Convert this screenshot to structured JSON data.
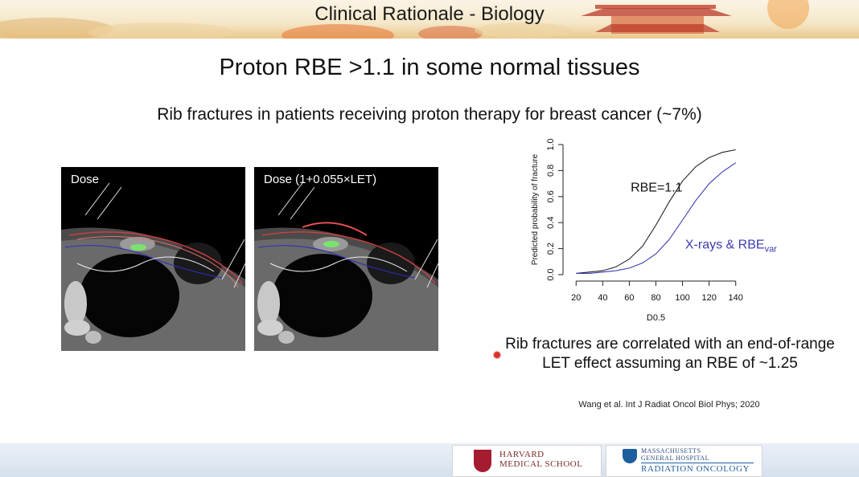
{
  "header": {
    "title": "Clinical Rationale - Biology"
  },
  "slide": {
    "title": "Proton RBE >1.1 in some normal tissues",
    "subtitle": "Rib fractures in patients receiving proton therapy for breast cancer (~7%)",
    "images": [
      {
        "label": "Dose"
      },
      {
        "label": "Dose (1+0.055×LET)"
      }
    ],
    "conclusion": "Rib fractures are correlated with an end-of-range LET effect assuming an RBE of ~1.25",
    "citation": "Wang et al. Int J Radiat Oncol Biol Phys; 2020"
  },
  "footer": {
    "logo_hms": {
      "line1": "HARVARD",
      "line2": "MEDICAL SCHOOL"
    },
    "logo_mgh": {
      "line1": "MASSACHUSETTS",
      "line2": "GENERAL HOSPITAL",
      "line3": "RADIATION ONCOLOGY"
    }
  },
  "colors": {
    "curve_rbe": "#222222",
    "curve_xray": "#3b3bb0",
    "bullet": "#d9342b"
  },
  "chart_data": {
    "type": "line",
    "xlabel": "D0.5",
    "ylabel": "Predicted probability of fracture",
    "xlim": [
      15,
      145
    ],
    "ylim": [
      0,
      1.0
    ],
    "xticks": [
      20,
      40,
      60,
      80,
      100,
      120,
      140
    ],
    "yticks": [
      "0.0",
      "0.2",
      "0.4",
      "0.6",
      "0.8",
      "1.0"
    ],
    "series": [
      {
        "name": "RBE=1.1",
        "x": [
          20,
          30,
          40,
          50,
          60,
          70,
          80,
          90,
          100,
          110,
          120,
          130,
          140
        ],
        "y": [
          0.01,
          0.02,
          0.03,
          0.06,
          0.12,
          0.22,
          0.38,
          0.56,
          0.72,
          0.83,
          0.9,
          0.94,
          0.96
        ]
      },
      {
        "name": "X-rays & RBE",
        "name_subscript": "var",
        "x": [
          20,
          30,
          40,
          50,
          60,
          70,
          80,
          90,
          100,
          110,
          120,
          130,
          140
        ],
        "y": [
          0.01,
          0.01,
          0.02,
          0.03,
          0.05,
          0.09,
          0.16,
          0.27,
          0.42,
          0.57,
          0.7,
          0.79,
          0.86
        ]
      }
    ]
  }
}
